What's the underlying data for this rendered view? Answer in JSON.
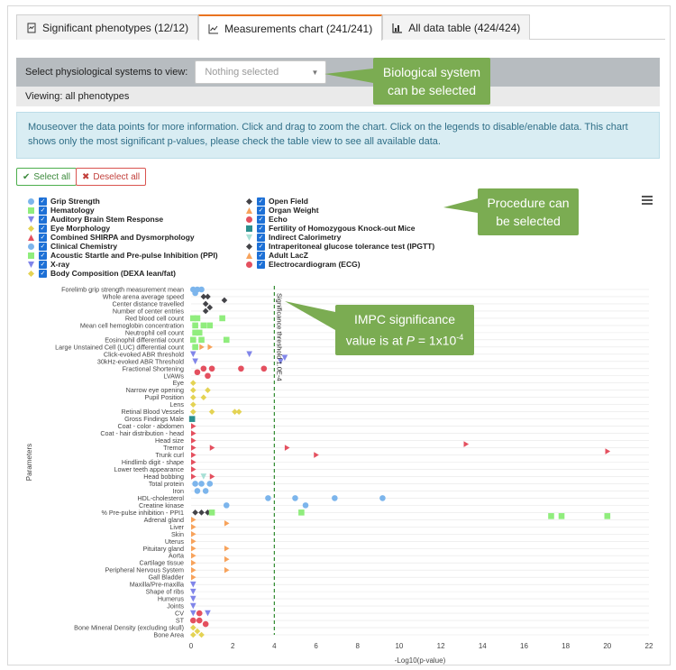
{
  "tabs": [
    {
      "label": "Significant phenotypes (12/12)",
      "icon": "report-icon"
    },
    {
      "label": "Measurements chart (241/241)",
      "icon": "chart-icon"
    },
    {
      "label": "All data table (424/424)",
      "icon": "table-icon"
    }
  ],
  "system_selector": {
    "label": "Select physiological systems to view:",
    "placeholder": "Nothing selected"
  },
  "viewing_text": "Viewing: all phenotypes",
  "info_text": "Mouseover the data points for more information. Click and drag to zoom the chart. Click on the legends to disable/enable data. This chart shows only the most significant p-values, please check the table view to see all available data.",
  "buttons": {
    "select_all": "Select all",
    "deselect_all": "Deselect all"
  },
  "legend": [
    {
      "name": "Grip Strength",
      "color": "#7cb5ec",
      "marker": "circle"
    },
    {
      "name": "Hematology",
      "color": "#90ed7d",
      "marker": "square"
    },
    {
      "name": "Auditory Brain Stem Response",
      "color": "#8085e9",
      "marker": "triangle-down"
    },
    {
      "name": "Eye Morphology",
      "color": "#e4d354",
      "marker": "diamond"
    },
    {
      "name": "Combined SHIRPA and Dysmorphology",
      "color": "#e4505f",
      "marker": "triangle"
    },
    {
      "name": "Clinical Chemistry",
      "color": "#7cb5ec",
      "marker": "circle"
    },
    {
      "name": "Acoustic Startle and Pre-pulse Inhibition (PPI)",
      "color": "#90ed7d",
      "marker": "square"
    },
    {
      "name": "X-ray",
      "color": "#8085e9",
      "marker": "triangle-down"
    },
    {
      "name": "Body Composition (DEXA lean/fat)",
      "color": "#e4d354",
      "marker": "diamond"
    },
    {
      "name": "Open Field",
      "color": "#434348",
      "marker": "diamond"
    },
    {
      "name": "Organ Weight",
      "color": "#f7a35c",
      "marker": "triangle"
    },
    {
      "name": "Echo",
      "color": "#e4505f",
      "marker": "circle"
    },
    {
      "name": "Fertility of Homozygous Knock-out Mice",
      "color": "#2b908f",
      "marker": "square"
    },
    {
      "name": "Indirect Calorimetry",
      "color": "#a8e0d6",
      "marker": "triangle-down"
    },
    {
      "name": "Intraperitoneal glucose tolerance test (IPGTT)",
      "color": "#434348",
      "marker": "diamond"
    },
    {
      "name": "Adult LacZ",
      "color": "#f7a35c",
      "marker": "triangle"
    },
    {
      "name": "Electrocardiogram (ECG)",
      "color": "#e4505f",
      "marker": "circle"
    }
  ],
  "callouts": {
    "system": "Biological system can be selected",
    "procedure": "Procedure can be selected",
    "significance_pre": "IMPC significance value is at ",
    "significance_p": "P",
    "significance_post": " = 1x10",
    "significance_exp": "-4"
  },
  "chart_data": {
    "type": "scatter",
    "xlabel": "-Log10(p-value)",
    "ylabel": "Parameters",
    "xlim": [
      0,
      22
    ],
    "xticks": [
      0,
      2,
      4,
      6,
      8,
      10,
      12,
      14,
      16,
      18,
      20,
      22
    ],
    "threshold": {
      "x": 4,
      "label": "Significance threshold 1.0E-4"
    },
    "parameters": [
      "Forelimb grip strength measurement mean",
      "Whole arena average speed",
      "Center distance travelled",
      "Number of center entries",
      "Red blood cell count",
      "Mean cell hemoglobin concentration",
      "Neutrophil cell count",
      "Eosinophil differential count",
      "Large Unstained Cell (LUC) differential count",
      "Click-evoked ABR threshold",
      "30kHz-evoked ABR Threshold",
      "Fractional Shortening",
      "LVAWs",
      "Eye",
      "Narrow eye opening",
      "Pupil Position",
      "Lens",
      "Retinal Blood Vessels",
      "Gross Findings Male",
      "Coat - color - abdomen",
      "Coat - hair distribution - head",
      "Head size",
      "Tremor",
      "Trunk curl",
      "Hindlimb digit - shape",
      "Lower teeth appearance",
      "Head bobbing",
      "Total protein",
      "Iron",
      "HDL-cholesterol",
      "Creatine kinase",
      "% Pre-pulse inhibition - PPI1",
      "Adrenal gland",
      "Liver",
      "Skin",
      "Uterus",
      "Pituitary gland",
      "Aorta",
      "Cartilage tissue",
      "Peripheral Nervous System",
      "Gall Bladder",
      "Maxilla/Pre-maxilla",
      "Shape of ribs",
      "Humerus",
      "Joints",
      "CV",
      "ST",
      "Bone Mineral Density (excluding skull)",
      "Bone Area"
    ],
    "points": [
      {
        "series": 0,
        "y": 0,
        "x": 0.1
      },
      {
        "series": 0,
        "y": 0,
        "x": 0.3
      },
      {
        "series": 0,
        "y": 0,
        "x": 0.5
      },
      {
        "series": 0,
        "y": 0.5,
        "x": 0.2
      },
      {
        "series": 9,
        "y": 1,
        "x": 0.6
      },
      {
        "series": 9,
        "y": 1,
        "x": 0.8
      },
      {
        "series": 9,
        "y": 1.5,
        "x": 1.6
      },
      {
        "series": 9,
        "y": 2,
        "x": 0.7
      },
      {
        "series": 9,
        "y": 2.5,
        "x": 0.9
      },
      {
        "series": 9,
        "y": 3,
        "x": 0.7
      },
      {
        "series": 1,
        "y": 4,
        "x": 0.1
      },
      {
        "series": 1,
        "y": 4,
        "x": 0.3
      },
      {
        "series": 1,
        "y": 4,
        "x": 1.5
      },
      {
        "series": 1,
        "y": 5,
        "x": 0.2
      },
      {
        "series": 1,
        "y": 5,
        "x": 0.6
      },
      {
        "series": 1,
        "y": 5,
        "x": 0.9
      },
      {
        "series": 1,
        "y": 6,
        "x": 0.2
      },
      {
        "series": 1,
        "y": 6,
        "x": 0.4
      },
      {
        "series": 1,
        "y": 7,
        "x": 0.1
      },
      {
        "series": 1,
        "y": 7,
        "x": 0.5
      },
      {
        "series": 1,
        "y": 7,
        "x": 1.7
      },
      {
        "series": 1,
        "y": 8,
        "x": 0.2
      },
      {
        "series": 10,
        "y": 8,
        "x": 0.5
      },
      {
        "series": 10,
        "y": 8,
        "x": 0.9
      },
      {
        "series": 2,
        "y": 9,
        "x": 0.1
      },
      {
        "series": 2,
        "y": 9,
        "x": 2.8
      },
      {
        "series": 2,
        "y": 9.5,
        "x": 4.5
      },
      {
        "series": 2,
        "y": 10,
        "x": 0.2
      },
      {
        "series": 2,
        "y": 10,
        "x": 4.3
      },
      {
        "series": 11,
        "y": 11,
        "x": 0.6
      },
      {
        "series": 11,
        "y": 11,
        "x": 1.0
      },
      {
        "series": 11,
        "y": 11,
        "x": 2.4
      },
      {
        "series": 11,
        "y": 11,
        "x": 3.5
      },
      {
        "series": 11,
        "y": 11.5,
        "x": 0.3
      },
      {
        "series": 11,
        "y": 12,
        "x": 0.8
      },
      {
        "series": 3,
        "y": 13,
        "x": 0.1
      },
      {
        "series": 3,
        "y": 14,
        "x": 0.1
      },
      {
        "series": 3,
        "y": 14,
        "x": 0.8
      },
      {
        "series": 3,
        "y": 15,
        "x": 0.1
      },
      {
        "series": 3,
        "y": 15,
        "x": 0.6
      },
      {
        "series": 3,
        "y": 16,
        "x": 0.1
      },
      {
        "series": 3,
        "y": 17,
        "x": 0.1
      },
      {
        "series": 3,
        "y": 17,
        "x": 1.0
      },
      {
        "series": 3,
        "y": 17,
        "x": 2.1
      },
      {
        "series": 3,
        "y": 17,
        "x": 2.3
      },
      {
        "series": 12,
        "y": 18,
        "x": 0.05
      },
      {
        "series": 4,
        "y": 19,
        "x": 0.1
      },
      {
        "series": 4,
        "y": 20,
        "x": 0.1
      },
      {
        "series": 4,
        "y": 21,
        "x": 0.1
      },
      {
        "series": 4,
        "y": 22,
        "x": 0.1
      },
      {
        "series": 4,
        "y": 22,
        "x": 1.0
      },
      {
        "series": 4,
        "y": 22,
        "x": 4.6
      },
      {
        "series": 4,
        "y": 21.5,
        "x": 13.2
      },
      {
        "series": 4,
        "y": 22.5,
        "x": 20.0
      },
      {
        "series": 4,
        "y": 23,
        "x": 0.1
      },
      {
        "series": 4,
        "y": 23,
        "x": 6.0
      },
      {
        "series": 4,
        "y": 24,
        "x": 0.1
      },
      {
        "series": 4,
        "y": 25,
        "x": 0.1
      },
      {
        "series": 4,
        "y": 26,
        "x": 0.1
      },
      {
        "series": 4,
        "y": 26,
        "x": 1.0
      },
      {
        "series": 13,
        "y": 26,
        "x": 0.6
      },
      {
        "series": 5,
        "y": 27,
        "x": 0.2
      },
      {
        "series": 5,
        "y": 27,
        "x": 0.5
      },
      {
        "series": 5,
        "y": 27,
        "x": 0.9
      },
      {
        "series": 5,
        "y": 28,
        "x": 0.3
      },
      {
        "series": 5,
        "y": 28,
        "x": 0.7
      },
      {
        "series": 5,
        "y": 29,
        "x": 3.7
      },
      {
        "series": 5,
        "y": 29,
        "x": 5.0
      },
      {
        "series": 5,
        "y": 29,
        "x": 6.9
      },
      {
        "series": 5,
        "y": 29,
        "x": 9.2
      },
      {
        "series": 5,
        "y": 30,
        "x": 1.7
      },
      {
        "series": 5,
        "y": 30,
        "x": 5.5
      },
      {
        "series": 14,
        "y": 31,
        "x": 0.2
      },
      {
        "series": 14,
        "y": 31,
        "x": 0.5
      },
      {
        "series": 14,
        "y": 31,
        "x": 0.8
      },
      {
        "series": 6,
        "y": 31,
        "x": 1.0
      },
      {
        "series": 6,
        "y": 31,
        "x": 5.3
      },
      {
        "series": 6,
        "y": 31.5,
        "x": 17.3
      },
      {
        "series": 6,
        "y": 31.5,
        "x": 17.8
      },
      {
        "series": 6,
        "y": 31.5,
        "x": 20.0
      },
      {
        "series": 10,
        "y": 32,
        "x": 0.1
      },
      {
        "series": 10,
        "y": 32.5,
        "x": 1.7
      },
      {
        "series": 10,
        "y": 33,
        "x": 0.1
      },
      {
        "series": 10,
        "y": 34,
        "x": 0.1
      },
      {
        "series": 10,
        "y": 35,
        "x": 0.1
      },
      {
        "series": 10,
        "y": 36,
        "x": 0.1
      },
      {
        "series": 10,
        "y": 36,
        "x": 1.7
      },
      {
        "series": 10,
        "y": 37,
        "x": 0.1
      },
      {
        "series": 10,
        "y": 37.5,
        "x": 1.7
      },
      {
        "series": 10,
        "y": 38,
        "x": 0.1
      },
      {
        "series": 10,
        "y": 39,
        "x": 0.1
      },
      {
        "series": 10,
        "y": 39,
        "x": 1.7
      },
      {
        "series": 10,
        "y": 40,
        "x": 0.1
      },
      {
        "series": 7,
        "y": 41,
        "x": 0.1
      },
      {
        "series": 7,
        "y": 42,
        "x": 0.1
      },
      {
        "series": 7,
        "y": 43,
        "x": 0.1
      },
      {
        "series": 7,
        "y": 44,
        "x": 0.1
      },
      {
        "series": 7,
        "y": 45,
        "x": 0.1
      },
      {
        "series": 7,
        "y": 45,
        "x": 0.8
      },
      {
        "series": 11,
        "y": 45,
        "x": 0.4
      },
      {
        "series": 11,
        "y": 46,
        "x": 0.1
      },
      {
        "series": 11,
        "y": 46,
        "x": 0.4
      },
      {
        "series": 11,
        "y": 46.5,
        "x": 0.7
      },
      {
        "series": 8,
        "y": 47,
        "x": 0.1
      },
      {
        "series": 8,
        "y": 47.5,
        "x": 0.3
      },
      {
        "series": 8,
        "y": 48,
        "x": 0.1
      },
      {
        "series": 8,
        "y": 48,
        "x": 0.5
      }
    ]
  }
}
